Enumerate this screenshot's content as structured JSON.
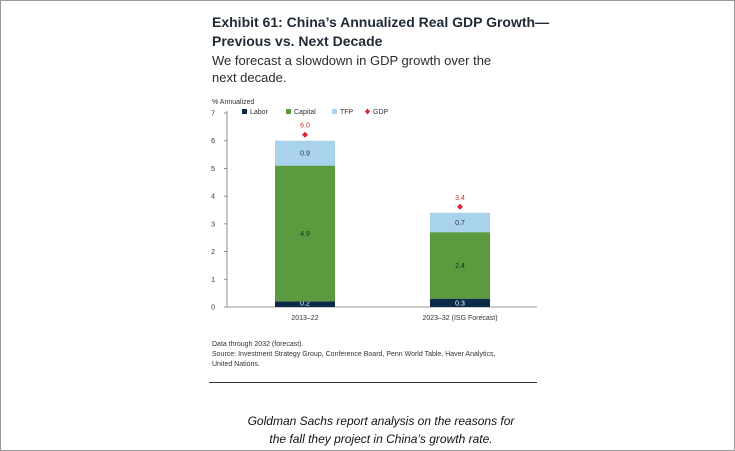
{
  "figure": {
    "title_line1": "Exhibit 61: China’s Annualized Real GDP Growth—",
    "title_line2": "Previous vs. Next Decade",
    "subtitle_line1": "We forecast a slowdown in GDP growth over the",
    "subtitle_line2": "next decade.",
    "note": "Data through 2032 (forecast).",
    "source_line1": "Source: Investment Strategy Group, Conference Board, Penn World Table, Haver Analytics,",
    "source_line2": "United Nations."
  },
  "caption": {
    "line1": "Goldman Sachs report analysis on the reasons for",
    "line2": "the fall they project in China’s growth rate."
  },
  "chart_data": {
    "type": "bar",
    "stacked": true,
    "ylabel": "% Annualized",
    "ylim": [
      0,
      7
    ],
    "yticks": [
      "0",
      "1",
      "2",
      "3",
      "4",
      "5",
      "6",
      "7"
    ],
    "categories": [
      "2013–22",
      "2023–32 (ISG Forecast)"
    ],
    "series": [
      {
        "name": "Labor",
        "color": "#0d2a4a",
        "values": [
          0.2,
          0.3
        ],
        "labels": [
          "0.2",
          "0.3"
        ]
      },
      {
        "name": "Capital",
        "color": "#5b9a3e",
        "values": [
          4.9,
          2.4
        ],
        "labels": [
          "4.9",
          "2.4"
        ]
      },
      {
        "name": "TFP",
        "color": "#a9d3ec",
        "values": [
          0.9,
          0.7
        ],
        "labels": [
          "0.9",
          "0.7"
        ]
      }
    ],
    "gdp": {
      "name": "GDP",
      "color": "#d9262b",
      "values": [
        6.0,
        3.4
      ],
      "labels": [
        "6.0",
        "3.4"
      ]
    },
    "legend_position": "top-left"
  }
}
